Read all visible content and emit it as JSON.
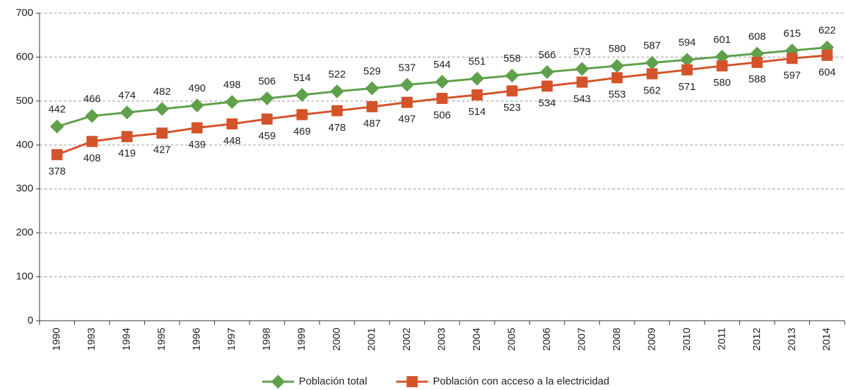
{
  "chart_data": {
    "type": "line",
    "categories": [
      "1990",
      "1993",
      "1994",
      "1995",
      "1996",
      "1997",
      "1998",
      "1999",
      "2000",
      "2001",
      "2002",
      "2003",
      "2004",
      "2005",
      "2006",
      "2007",
      "2008",
      "2009",
      "2010",
      "2011",
      "2012",
      "2013",
      "2014"
    ],
    "series": [
      {
        "name": "Población total",
        "color": "#5fa04b",
        "values": [
          442,
          466,
          474,
          482,
          490,
          498,
          506,
          514,
          522,
          529,
          537,
          544,
          551,
          558,
          566,
          573,
          580,
          587,
          594,
          601,
          608,
          615,
          622
        ]
      },
      {
        "name": "Población con acceso a la electricidad",
        "color": "#d4532a",
        "values": [
          378,
          408,
          419,
          427,
          439,
          448,
          459,
          469,
          478,
          487,
          497,
          506,
          514,
          523,
          534,
          543,
          553,
          562,
          571,
          580,
          588,
          597,
          604
        ]
      }
    ],
    "ylim": [
      0,
      700
    ],
    "yticks": [
      0,
      100,
      200,
      300,
      400,
      500,
      600,
      700
    ],
    "grid": true
  }
}
